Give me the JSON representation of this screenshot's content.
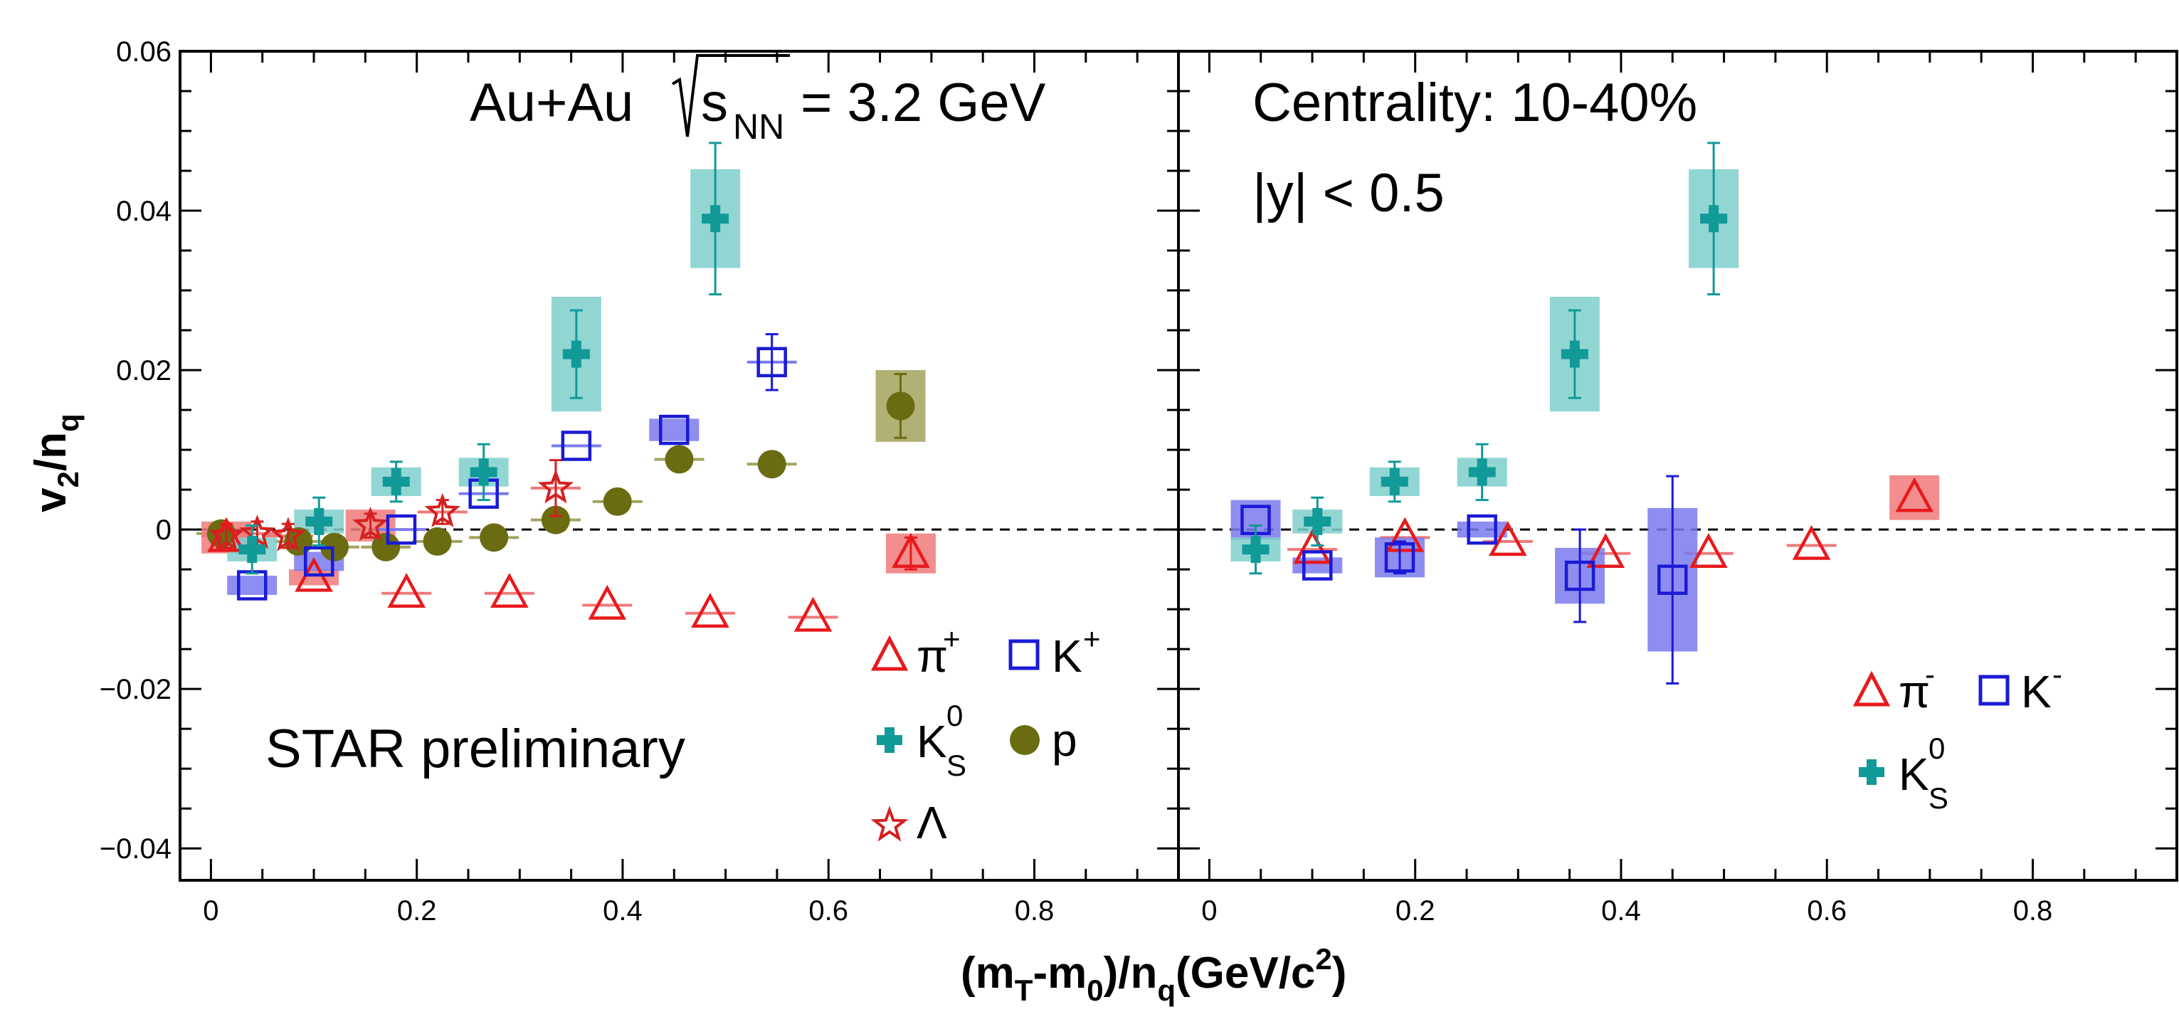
{
  "chart_data": {
    "type": "scatter",
    "xlabel": "(mT-m0)/nq(GeV/c2)",
    "xlabel_parts": {
      "a": "(m",
      "b": "T",
      "c": "-m",
      "d": "0",
      "e": ")/n",
      "f": "q",
      "g": "(GeV/c",
      "h": "2",
      "i": ")"
    },
    "ylabel": "v2/nq",
    "ylabel_parts": {
      "a": "v",
      "b": "2",
      "c": "/n",
      "d": "q"
    },
    "xlim": [
      -0.03,
      0.94
    ],
    "ylim": [
      -0.044,
      0.06
    ],
    "x_ticks": [
      "0",
      "0.2",
      "0.4",
      "0.6",
      "0.8"
    ],
    "x_tick_values": [
      0,
      0.2,
      0.4,
      0.6,
      0.8
    ],
    "y_ticks": [
      "0.06",
      "0.04",
      "0.02",
      "0",
      "−0.02",
      "−0.04"
    ],
    "y_tick_values": [
      0.06,
      0.04,
      0.02,
      0,
      -0.02,
      -0.04
    ],
    "colors": {
      "pi": "#e8191c",
      "pi_box": "#f07a7a",
      "K": "#1a1ad6",
      "K_box": "#7a7aee",
      "K0S": "#119a98",
      "K0S_box": "#7fcfcd",
      "p": "#6b6b12",
      "p_box": "#a3a35e",
      "Lambda": "#d42020"
    },
    "panels": [
      {
        "name": "left",
        "annotations": {
          "system": "Au+Au",
          "sqrt_s": "s",
          "sqrt_sub": "NN",
          "energy": "= 3.2 GeV",
          "preliminary": "STAR preliminary"
        },
        "legend": {
          "pi": "π",
          "pi_sup": "+",
          "K": "K",
          "K_sup": "+",
          "K0S": "K",
          "K0S_sup": "0",
          "K0S_sub": "S",
          "p": "p",
          "Lambda": "Λ"
        },
        "series": [
          {
            "name": "pi+",
            "marker": "triangle-open",
            "x": [
              0.015,
              0.1,
              0.19,
              0.29,
              0.385,
              0.485,
              0.585,
              0.68
            ],
            "y": [
              -0.001,
              -0.006,
              -0.008,
              -0.008,
              -0.0095,
              -0.0105,
              -0.011,
              -0.003
            ],
            "err": [
              0.001,
              0.001,
              0.001,
              0.001,
              0.001,
              0.001,
              0.001,
              0.002
            ],
            "sys": [
              0.002,
              0.001,
              0.0005,
              0.0005,
              0.0005,
              0.0005,
              0.0007,
              0.0025
            ]
          },
          {
            "name": "K+",
            "marker": "square-open",
            "x": [
              0.04,
              0.105,
              0.185,
              0.265,
              0.355,
              0.45,
              0.545
            ],
            "y": [
              -0.007,
              -0.004,
              0.0,
              0.0045,
              0.0105,
              0.0125,
              0.021
            ],
            "err": [
              0.001,
              0.001,
              0.001,
              0.001,
              0.001,
              0.001,
              0.0035
            ],
            "sys": [
              0.0012,
              0.0012,
              0.0005,
              0.0005,
              0.0005,
              0.0014,
              0.0005
            ]
          },
          {
            "name": "K0S",
            "marker": "cross",
            "x": [
              0.04,
              0.105,
              0.18,
              0.265,
              0.355,
              0.49
            ],
            "y": [
              -0.0025,
              0.001,
              0.006,
              0.0072,
              0.022,
              0.039
            ],
            "err": [
              0.003,
              0.003,
              0.0025,
              0.0035,
              0.0055,
              0.0095
            ],
            "sys": [
              0.0015,
              0.0015,
              0.0018,
              0.0018,
              0.0072,
              0.0062
            ]
          },
          {
            "name": "p",
            "marker": "circle-filled",
            "x": [
              0.01,
              0.085,
              0.12,
              0.17,
              0.22,
              0.275,
              0.335,
              0.395,
              0.455,
              0.545,
              0.67
            ],
            "y": [
              -0.0005,
              -0.0015,
              -0.0022,
              -0.0022,
              -0.0015,
              -0.001,
              0.0012,
              0.0035,
              0.0088,
              0.0082,
              0.0155
            ],
            "err": [
              0.0005,
              0.0005,
              0.0005,
              0.0005,
              0.0005,
              0.0005,
              0.0005,
              0.0005,
              0.0005,
              0.0005,
              0.004
            ],
            "sys": [
              0.0004,
              0.0004,
              0.0004,
              0.0004,
              0.0004,
              0.0004,
              0.0004,
              0.0004,
              0.0004,
              0.0004,
              0.0045
            ]
          },
          {
            "name": "Lambda",
            "marker": "star-open",
            "x": [
              0.015,
              0.045,
              0.075,
              0.155,
              0.225,
              0.335
            ],
            "y": [
              -0.0008,
              -0.0005,
              -0.0008,
              0.0005,
              0.0022,
              0.0052
            ],
            "err": [
              0.0015,
              0.0015,
              0.0015,
              0.0015,
              0.0015,
              0.0035
            ],
            "sys": [
              0.0008,
              0.0008,
              0.0008,
              0.002,
              0.0008,
              0.0008
            ]
          }
        ]
      },
      {
        "name": "right",
        "annotations": {
          "centrality": "Centrality: 10-40%",
          "rapidity": "|y| < 0.5"
        },
        "legend": {
          "pi": "π",
          "pi_sup": "-",
          "K": "K",
          "K_sup": "-",
          "K0S": "K",
          "K0S_sup": "0",
          "K0S_sub": "S"
        },
        "series": [
          {
            "name": "pi-",
            "marker": "triangle-open",
            "x": [
              0.1,
              0.19,
              0.29,
              0.385,
              0.485,
              0.585,
              0.685
            ],
            "y": [
              -0.0025,
              -0.001,
              -0.0015,
              -0.003,
              -0.003,
              -0.002,
              0.004
            ],
            "err": [
              0.001,
              0.001,
              0.001,
              0.001,
              0.001,
              0.001,
              0.001
            ],
            "sys": [
              0.0004,
              0.0004,
              0.0004,
              0.0004,
              0.0004,
              0.0007,
              0.0028
            ]
          },
          {
            "name": "K-",
            "marker": "square-open",
            "x": [
              0.045,
              0.105,
              0.185,
              0.265,
              0.36,
              0.45
            ],
            "y": [
              0.0012,
              -0.0045,
              -0.0035,
              0.0,
              -0.0058,
              -0.0063
            ],
            "err": [
              0.001,
              0.001,
              0.002,
              0.001,
              0.0058,
              0.013
            ],
            "sys": [
              0.0025,
              0.001,
              0.0025,
              0.001,
              0.0035,
              0.009
            ]
          },
          {
            "name": "K0S",
            "marker": "cross",
            "x": [
              0.045,
              0.105,
              0.18,
              0.265,
              0.355,
              0.49
            ],
            "y": [
              -0.0025,
              0.001,
              0.006,
              0.0072,
              0.022,
              0.039
            ],
            "err": [
              0.003,
              0.003,
              0.0025,
              0.0035,
              0.0055,
              0.0095
            ],
            "sys": [
              0.0015,
              0.0015,
              0.0018,
              0.0018,
              0.0072,
              0.0062
            ]
          }
        ]
      }
    ]
  }
}
